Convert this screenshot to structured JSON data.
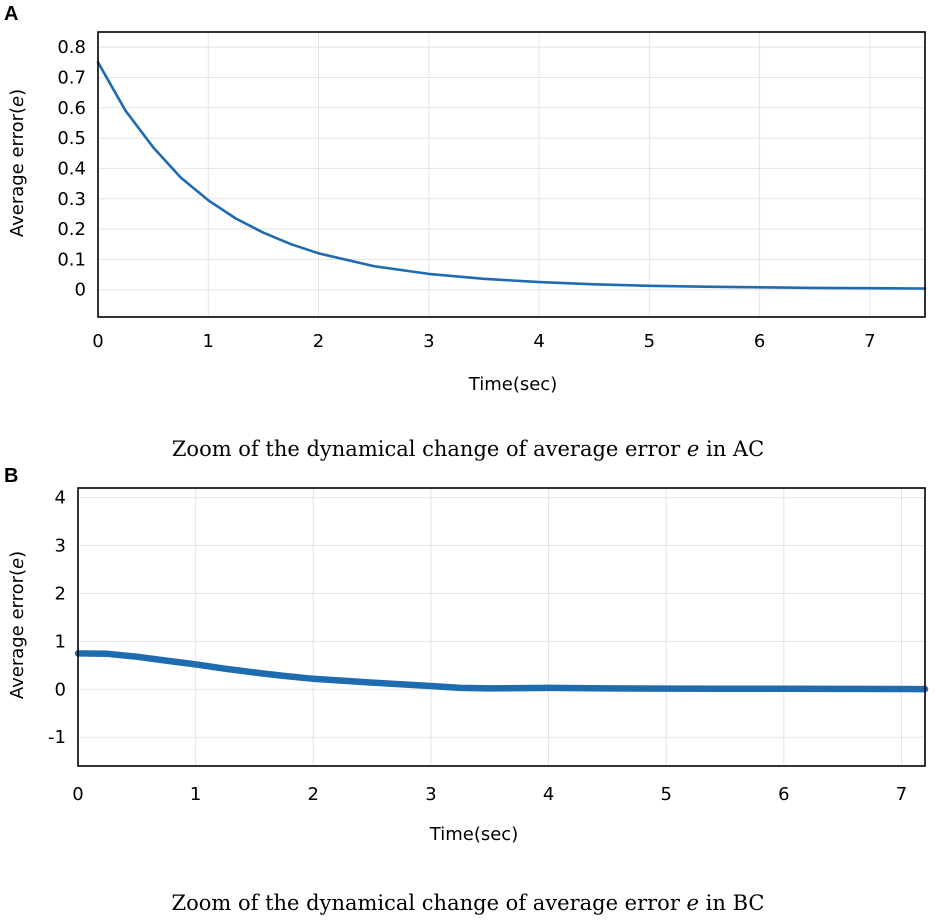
{
  "chart_data": [
    {
      "type": "line",
      "panel": "A",
      "title": "",
      "xlabel": "Time(sec)",
      "ylabel": "Average error(e)",
      "ylabel_text": "Average error(",
      "ylabel_var": "e",
      "ylabel_close": ")",
      "xlim": [
        0,
        7.5
      ],
      "ylim": [
        -0.09,
        0.85
      ],
      "x_ticks": [
        0,
        1,
        2,
        3,
        4,
        5,
        6,
        7
      ],
      "x_tick_labels": [
        "0",
        "1",
        "2",
        "3",
        "4",
        "5",
        "6",
        "7"
      ],
      "y_ticks": [
        0,
        0.1,
        0.2,
        0.3,
        0.4,
        0.5,
        0.6,
        0.7,
        0.8
      ],
      "y_tick_labels": [
        "0",
        "0.1",
        "0.2",
        "0.3",
        "0.4",
        "0.5",
        "0.6",
        "0.7",
        "0.8"
      ],
      "grid": true,
      "series": [
        {
          "name": "average error",
          "color": "#1f6bb0",
          "x": [
            0,
            0.25,
            0.5,
            0.75,
            1,
            1.25,
            1.5,
            1.75,
            2,
            2.5,
            3,
            3.5,
            4,
            4.5,
            5,
            5.5,
            6,
            6.5,
            7,
            7.5
          ],
          "y": [
            0.75,
            0.59,
            0.47,
            0.37,
            0.295,
            0.235,
            0.188,
            0.15,
            0.12,
            0.078,
            0.052,
            0.036,
            0.025,
            0.018,
            0.013,
            0.01,
            0.008,
            0.006,
            0.005,
            0.004
          ]
        }
      ],
      "caption_pre": "Zoom of the dynamical change of average error ",
      "caption_var": "e",
      "caption_post": " in AC"
    },
    {
      "type": "line",
      "panel": "B",
      "title": "",
      "xlabel": "Time(sec)",
      "ylabel": "Average error(e)",
      "ylabel_text": "Average error(",
      "ylabel_var": "e",
      "ylabel_close": ")",
      "xlim": [
        0,
        7.2
      ],
      "ylim": [
        -1.6,
        4.2
      ],
      "x_ticks": [
        0,
        1,
        2,
        3,
        4,
        5,
        6,
        7
      ],
      "x_tick_labels": [
        "0",
        "1",
        "2",
        "3",
        "4",
        "5",
        "6",
        "7"
      ],
      "y_ticks": [
        -1,
        0,
        1,
        2,
        3,
        4
      ],
      "y_tick_labels": [
        "-1",
        "0",
        "1",
        "2",
        "3",
        "4"
      ],
      "grid": true,
      "series": [
        {
          "name": "average error",
          "color": "#1f6bb0",
          "x": [
            0,
            0.25,
            0.5,
            0.75,
            1,
            1.25,
            1.5,
            1.75,
            2,
            2.5,
            3,
            3.25,
            3.5,
            4,
            4.5,
            5,
            5.5,
            6,
            6.5,
            7,
            7.2
          ],
          "y": [
            0.75,
            0.74,
            0.68,
            0.6,
            0.52,
            0.43,
            0.35,
            0.28,
            0.22,
            0.14,
            0.07,
            0.03,
            0.02,
            0.03,
            0.02,
            0.015,
            0.012,
            0.01,
            0.008,
            0.006,
            0.005
          ]
        }
      ],
      "caption_pre": "Zoom of the dynamical change of average error ",
      "caption_var": "e",
      "caption_post": " in BC"
    }
  ]
}
